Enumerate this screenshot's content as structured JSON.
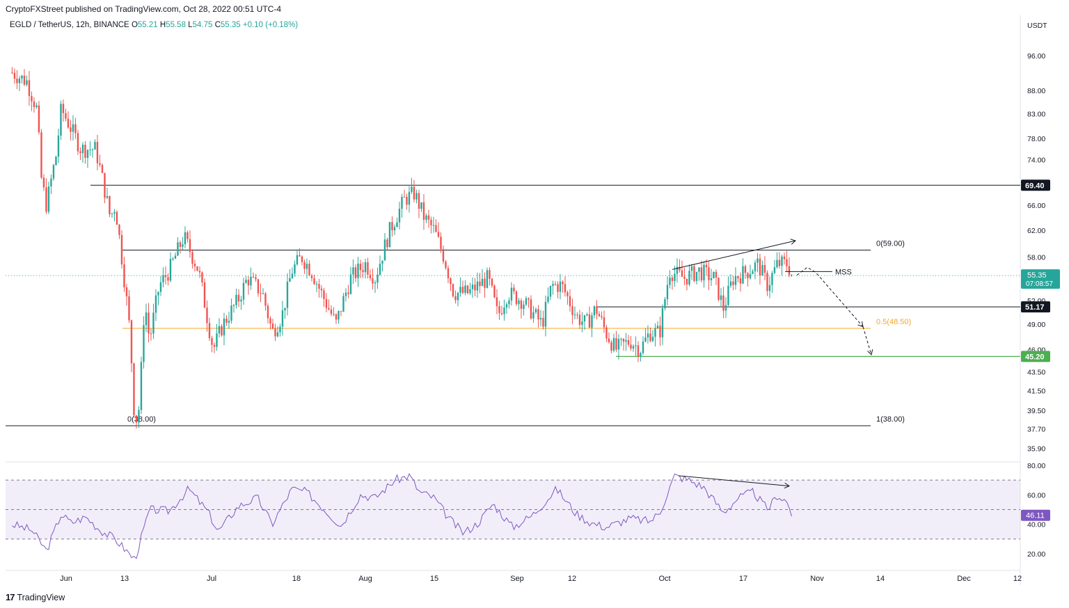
{
  "header": {
    "publish_line": "CryptoFXStreet published on TradingView.com, Oct 28, 2022 00:51 UTC-4"
  },
  "legend": {
    "symbol": "EGLD / TetherUS, 12h, BINANCE",
    "o_label": "O",
    "o_value": "55.21",
    "h_label": "H",
    "h_value": "55.58",
    "l_label": "L",
    "l_value": "54.75",
    "c_label": "C",
    "c_value": "55.35",
    "change": "+0.10 (+0.18%)"
  },
  "footer": {
    "logo_text": "TradingView",
    "logo_mark": "17"
  },
  "chart_data": [
    {
      "type": "candlestick",
      "pair": "EGLD / TetherUS",
      "timeframe": "12h",
      "exchange": "BINANCE",
      "currency_label": "USDT",
      "y_ticks": [
        "96.00",
        "88.00",
        "83.00",
        "78.00",
        "74.00",
        "70.00",
        "66.00",
        "62.00",
        "58.00",
        "52.00",
        "49.00",
        "46.00",
        "43.50",
        "41.50",
        "39.50",
        "37.70",
        "35.90"
      ],
      "y_scale": "log",
      "x_ticks": [
        "Jun",
        "13",
        "Jul",
        "18",
        "Aug",
        "15",
        "Sep",
        "12",
        "Oct",
        "17",
        "Nov",
        "14",
        "Dec",
        "12"
      ],
      "last_price": "55.35",
      "countdown": "07:08:57",
      "price_path": [
        [
          "2022-05-21",
          92
        ],
        [
          "2022-05-24",
          90
        ],
        [
          "2022-05-26",
          84
        ],
        [
          "2022-05-27",
          70
        ],
        [
          "2022-05-28",
          66
        ],
        [
          "2022-05-30",
          75
        ],
        [
          "2022-05-31",
          84
        ],
        [
          "2022-06-02",
          80
        ],
        [
          "2022-06-04",
          76
        ],
        [
          "2022-06-07",
          76
        ],
        [
          "2022-06-09",
          68
        ],
        [
          "2022-06-10",
          64
        ],
        [
          "2022-06-11",
          66
        ],
        [
          "2022-06-12",
          60
        ],
        [
          "2022-06-14",
          48
        ],
        [
          "2022-06-15",
          38
        ],
        [
          "2022-06-16",
          40
        ],
        [
          "2022-06-17",
          52
        ],
        [
          "2022-06-18",
          47
        ],
        [
          "2022-06-20",
          54
        ],
        [
          "2022-06-22",
          56
        ],
        [
          "2022-06-25",
          61
        ],
        [
          "2022-06-28",
          56
        ],
        [
          "2022-06-30",
          49
        ],
        [
          "2022-07-01",
          46
        ],
        [
          "2022-07-03",
          49
        ],
        [
          "2022-07-06",
          52
        ],
        [
          "2022-07-08",
          55
        ],
        [
          "2022-07-11",
          53
        ],
        [
          "2022-07-13",
          48
        ],
        [
          "2022-07-15",
          50
        ],
        [
          "2022-07-17",
          56
        ],
        [
          "2022-07-19",
          58
        ],
        [
          "2022-07-21",
          56
        ],
        [
          "2022-07-23",
          53
        ],
        [
          "2022-07-26",
          49
        ],
        [
          "2022-07-29",
          55
        ],
        [
          "2022-08-01",
          57
        ],
        [
          "2022-08-03",
          55
        ],
        [
          "2022-08-06",
          62
        ],
        [
          "2022-08-09",
          67
        ],
        [
          "2022-08-11",
          68
        ],
        [
          "2022-08-13",
          64
        ],
        [
          "2022-08-15",
          62
        ],
        [
          "2022-08-17",
          58
        ],
        [
          "2022-08-19",
          53
        ],
        [
          "2022-08-22",
          53
        ],
        [
          "2022-08-26",
          55
        ],
        [
          "2022-08-28",
          50
        ],
        [
          "2022-08-30",
          53
        ],
        [
          "2022-09-02",
          52
        ],
        [
          "2022-09-06",
          49
        ],
        [
          "2022-09-08",
          54
        ],
        [
          "2022-09-10",
          54
        ],
        [
          "2022-09-13",
          50
        ],
        [
          "2022-09-15",
          49
        ],
        [
          "2022-09-17",
          51
        ],
        [
          "2022-09-19",
          48
        ],
        [
          "2022-09-21",
          46
        ],
        [
          "2022-09-24",
          47
        ],
        [
          "2022-09-26",
          46
        ],
        [
          "2022-09-28",
          48
        ],
        [
          "2022-09-30",
          48
        ],
        [
          "2022-10-02",
          56
        ],
        [
          "2022-10-05",
          55
        ],
        [
          "2022-10-08",
          56
        ],
        [
          "2022-10-11",
          55
        ],
        [
          "2022-10-13",
          51
        ],
        [
          "2022-10-15",
          55
        ],
        [
          "2022-10-18",
          56
        ],
        [
          "2022-10-20",
          57
        ],
        [
          "2022-10-22",
          54
        ],
        [
          "2022-10-24",
          57
        ],
        [
          "2022-10-26",
          57
        ],
        [
          "2022-10-27",
          55.35
        ]
      ],
      "levels": [
        {
          "label": "69.40",
          "value": 69.4,
          "color": "#131722"
        },
        {
          "label": "0(59.00)",
          "value": 59.0,
          "color": "#131722"
        },
        {
          "label": "51.17",
          "value": 51.17,
          "color": "#131722"
        },
        {
          "label": "0.5(48.50)",
          "value": 48.5,
          "color": "#f5a623"
        },
        {
          "label": "45.20",
          "value": 45.2,
          "color": "#4caf50"
        },
        {
          "label": "0(38.00)",
          "value": 38.0,
          "color": "#131722"
        },
        {
          "label": "1(38.00)",
          "value": 38.0,
          "color": "#131722"
        }
      ],
      "annotations": [
        "MSS"
      ],
      "colors": {
        "up": "#26a69a",
        "down": "#ef5350",
        "fib": "#f5a623",
        "support": "#4caf50"
      }
    },
    {
      "type": "line",
      "name": "RSI",
      "y_ticks": [
        "80.00",
        "60.00",
        "40.00",
        "20.00"
      ],
      "band": [
        30,
        70
      ],
      "mid": 50,
      "last_value": "46.11",
      "color": "#7e57c2",
      "values_path": [
        [
          "2022-05-21",
          40
        ],
        [
          "2022-05-25",
          36
        ],
        [
          "2022-05-28",
          22
        ],
        [
          "2022-05-31",
          47
        ],
        [
          "2022-06-02",
          41
        ],
        [
          "2022-06-05",
          45
        ],
        [
          "2022-06-08",
          36
        ],
        [
          "2022-06-11",
          30
        ],
        [
          "2022-06-15",
          16
        ],
        [
          "2022-06-18",
          50
        ],
        [
          "2022-06-22",
          49
        ],
        [
          "2022-06-26",
          64
        ],
        [
          "2022-06-30",
          48
        ],
        [
          "2022-07-02",
          35
        ],
        [
          "2022-07-06",
          52
        ],
        [
          "2022-07-10",
          58
        ],
        [
          "2022-07-13",
          40
        ],
        [
          "2022-07-17",
          64
        ],
        [
          "2022-07-20",
          62
        ],
        [
          "2022-07-24",
          49
        ],
        [
          "2022-07-27",
          39
        ],
        [
          "2022-07-31",
          60
        ],
        [
          "2022-08-03",
          58
        ],
        [
          "2022-08-07",
          70
        ],
        [
          "2022-08-10",
          73
        ],
        [
          "2022-08-12",
          62
        ],
        [
          "2022-08-15",
          58
        ],
        [
          "2022-08-18",
          44
        ],
        [
          "2022-08-21",
          34
        ],
        [
          "2022-08-24",
          41
        ],
        [
          "2022-08-27",
          54
        ],
        [
          "2022-08-31",
          38
        ],
        [
          "2022-09-04",
          46
        ],
        [
          "2022-09-09",
          64
        ],
        [
          "2022-09-13",
          47
        ],
        [
          "2022-09-16",
          41
        ],
        [
          "2022-09-19",
          38
        ],
        [
          "2022-09-24",
          44
        ],
        [
          "2022-09-28",
          42
        ],
        [
          "2022-09-30",
          48
        ],
        [
          "2022-10-03",
          73
        ],
        [
          "2022-10-06",
          70
        ],
        [
          "2022-10-09",
          65
        ],
        [
          "2022-10-13",
          48
        ],
        [
          "2022-10-16",
          58
        ],
        [
          "2022-10-19",
          62
        ],
        [
          "2022-10-22",
          50
        ],
        [
          "2022-10-24",
          60
        ],
        [
          "2022-10-26",
          55
        ],
        [
          "2022-10-27",
          46.11
        ]
      ]
    }
  ]
}
